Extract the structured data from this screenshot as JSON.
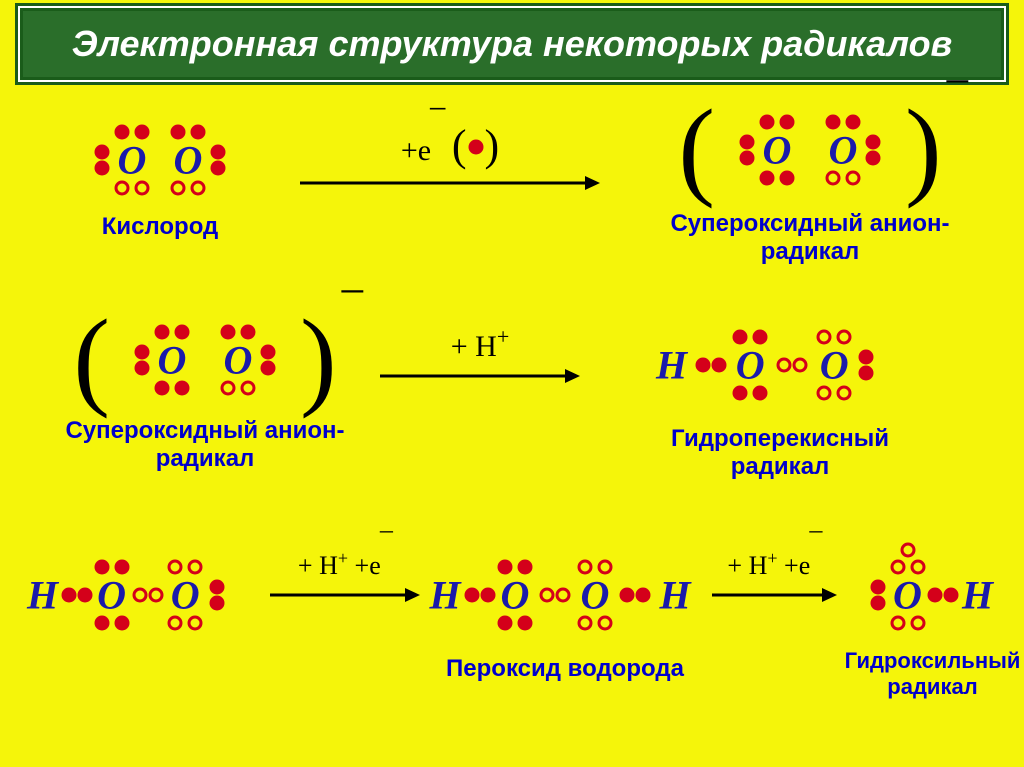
{
  "colors": {
    "background": "#f5f50a",
    "title_bg": "#2a6e2a",
    "title_border": "#1a5c1a",
    "title_text": "#ffffff",
    "atom_text": "#1a1aaa",
    "caption_text": "#0000cc",
    "dot_fill": "#d4001a",
    "dot_open_border": "#d4001a",
    "arrow_color": "#000000"
  },
  "title": "Электронная структура некоторых радикалов",
  "fontsize": {
    "title": 36,
    "atom": 40,
    "caption": 24,
    "arrow_label": 30,
    "paren": 90,
    "charge": 48
  },
  "dot_size": 15,
  "row1": {
    "left_caption": "Кислород",
    "right_caption": "Супероксидный анион-радикал",
    "arrow_label": "+е",
    "arrow_dot_paren": true
  },
  "row2": {
    "left_caption": "Супероксидный анион-\nрадикал",
    "right_caption": "Гидроперекисный радикал",
    "arrow_label": "+ Н+"
  },
  "row3": {
    "mid_caption": "Пероксид водорода",
    "right_caption": "Гидроксильный\nрадикал",
    "arrow1_label": "+ Н+ +е",
    "arrow2_label": "+ Н+ +е"
  },
  "atoms": {
    "O": "О",
    "H": "Н"
  }
}
